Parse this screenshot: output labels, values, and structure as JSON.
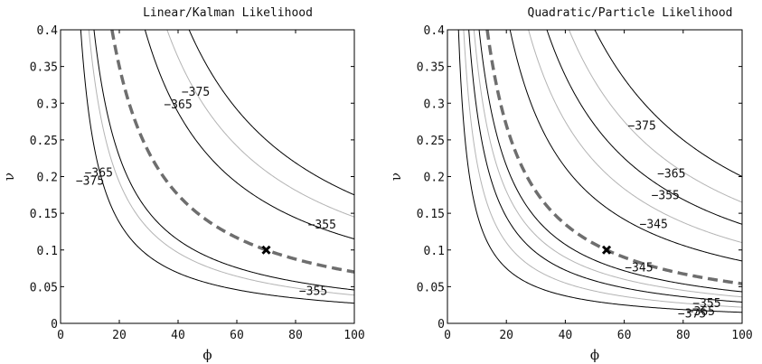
{
  "chart_data": [
    {
      "type": "contour",
      "title": "Linear/Kalman Likelihood",
      "xlabel": "ϕ",
      "ylabel": "ν",
      "xlim": [
        0,
        100
      ],
      "ylim": [
        0,
        0.4
      ],
      "xticks": [
        "0",
        "20",
        "40",
        "60",
        "80",
        "100"
      ],
      "yticks": [
        "0",
        "0.05",
        "0.1",
        "0.15",
        "0.2",
        "0.25",
        "0.3",
        "0.35",
        "0.4"
      ],
      "contours": [
        {
          "k": 2.75,
          "color": "#000000"
        },
        {
          "k": 3.85,
          "color": "#b4b4b4"
        },
        {
          "k": 4.55,
          "color": "#000000"
        },
        {
          "k": 11.5,
          "color": "#000000"
        },
        {
          "k": 14.5,
          "color": "#b4b4b4"
        },
        {
          "k": 17.5,
          "color": "#000000"
        }
      ],
      "ridge": {
        "k": 7.0,
        "color": "#6e6e6e",
        "style": "dashed"
      },
      "maximum": {
        "x": 70,
        "y": 0.1,
        "marker": "x"
      },
      "contour_labels": [
        {
          "text": "−375",
          "x": 46.0,
          "y": 0.315
        },
        {
          "text": "−365",
          "x": 40.0,
          "y": 0.298
        },
        {
          "text": "−365",
          "x": 13.0,
          "y": 0.205
        },
        {
          "text": "−375",
          "x": 10.0,
          "y": 0.194
        },
        {
          "text": "−355",
          "x": 89.0,
          "y": 0.134
        },
        {
          "text": "−355",
          "x": 86.0,
          "y": 0.044
        }
      ]
    },
    {
      "type": "contour",
      "title": "Quadratic/Particle Likelihood",
      "xlabel": "ϕ",
      "ylabel": "ν",
      "xlim": [
        0,
        100
      ],
      "ylim": [
        0,
        0.4
      ],
      "xticks": [
        "0",
        "20",
        "40",
        "60",
        "80",
        "100"
      ],
      "yticks": [
        "0",
        "0.05",
        "0.1",
        "0.15",
        "0.2",
        "0.25",
        "0.3",
        "0.35",
        "0.4"
      ],
      "contours": [
        {
          "k": 1.5,
          "color": "#000000"
        },
        {
          "k": 2.2,
          "color": "#b4b4b4"
        },
        {
          "k": 2.9,
          "color": "#000000"
        },
        {
          "k": 3.6,
          "color": "#b4b4b4"
        },
        {
          "k": 4.3,
          "color": "#000000"
        },
        {
          "k": 8.5,
          "color": "#000000"
        },
        {
          "k": 11.0,
          "color": "#b4b4b4"
        },
        {
          "k": 13.5,
          "color": "#000000"
        },
        {
          "k": 16.5,
          "color": "#b4b4b4"
        },
        {
          "k": 20.0,
          "color": "#000000"
        }
      ],
      "ridge": {
        "k": 5.4,
        "color": "#6e6e6e",
        "style": "dashed"
      },
      "maximum": {
        "x": 54,
        "y": 0.1,
        "marker": "x"
      },
      "contour_labels": [
        {
          "text": "−375",
          "x": 66.0,
          "y": 0.269
        },
        {
          "text": "−365",
          "x": 76.0,
          "y": 0.204
        },
        {
          "text": "−355",
          "x": 74.0,
          "y": 0.174
        },
        {
          "text": "−345",
          "x": 70.0,
          "y": 0.135
        },
        {
          "text": "−345",
          "x": 65.0,
          "y": 0.076
        },
        {
          "text": "−355",
          "x": 88.0,
          "y": 0.027
        },
        {
          "text": "−365",
          "x": 86.0,
          "y": 0.016
        },
        {
          "text": "−375",
          "x": 83.0,
          "y": 0.013
        }
      ]
    }
  ]
}
